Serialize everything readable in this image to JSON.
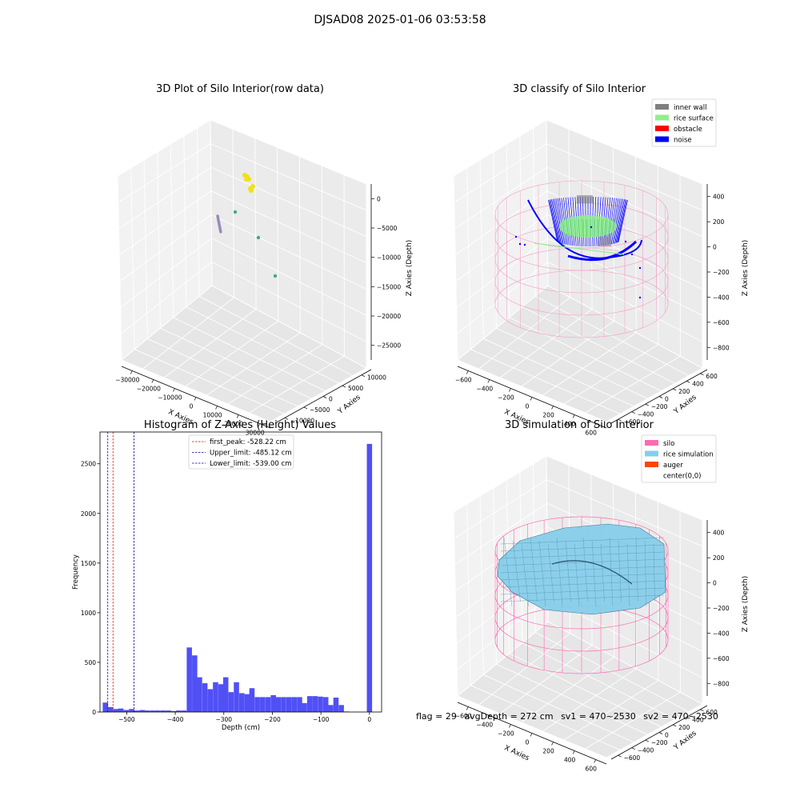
{
  "figure": {
    "title": "DJSAD08 2025-01-06 03:53:58"
  },
  "status": {
    "flag": "flag = 29",
    "avg_depth": "avgDepth = 272 cm",
    "sv1": "sv1 = 470~2530",
    "sv2": "sv2 = 470~2530"
  },
  "chart_data": [
    {
      "type": "scatter",
      "title": "3D Plot of Silo Interior(row data)",
      "xlabel": "X Axies",
      "ylabel": "Y Axies",
      "zlabel": "Z Axies (Depth)",
      "x_ticks": [
        "−30000",
        "−20000",
        "−10000",
        "0",
        "10000",
        "20000",
        "30000"
      ],
      "y_ticks": [
        "−10000",
        "−5000",
        "0",
        "5000",
        "10000"
      ],
      "z_ticks": [
        "0",
        "−5000",
        "−10000",
        "−15000",
        "−20000",
        "−25000"
      ],
      "grid": true,
      "series": [
        {
          "color": "#f2e01a"
        },
        {
          "color": "#9b8ab8"
        },
        {
          "color": "#3fae7c"
        }
      ]
    },
    {
      "type": "scatter",
      "title": "3D classify of Silo Interior",
      "xlabel": "X Axies",
      "ylabel": "Y Axies",
      "zlabel": "Z Axies (Depth)",
      "x_ticks": [
        "−600",
        "−400",
        "−200",
        "0",
        "200",
        "400",
        "600"
      ],
      "y_ticks": [
        "−600",
        "−400",
        "−200",
        "0",
        "200",
        "400",
        "600"
      ],
      "z_ticks": [
        "400",
        "200",
        "0",
        "−200",
        "−400",
        "−600",
        "−800"
      ],
      "grid": true,
      "legend_position": "top-right",
      "series": [
        {
          "name": "inner wall",
          "color": "#808080"
        },
        {
          "name": "rice surface",
          "color": "#90ee90"
        },
        {
          "name": "obstacle",
          "color": "#ff0000"
        },
        {
          "name": "noise",
          "color": "#0000ff"
        }
      ]
    },
    {
      "type": "bar",
      "title": "Histogram of Z-Axies (Height) Values",
      "xlabel": "Depth (cm)",
      "ylabel": "Frequency",
      "xlim": [
        -555,
        25
      ],
      "ylim": [
        0,
        2820
      ],
      "x_ticks": [
        -500,
        -400,
        -300,
        -200,
        -100,
        0
      ],
      "x_tick_labels": [
        "−500",
        "−400",
        "−300",
        "−200",
        "−100",
        "0"
      ],
      "y_ticks": [
        0,
        500,
        1000,
        1500,
        2000,
        2500
      ],
      "y_tick_labels": [
        "0",
        "500",
        "1000",
        "1500",
        "2000",
        "2500"
      ],
      "bin_width": 10.8,
      "color": "#5050f5",
      "bins": [
        {
          "x": -544,
          "v": 95
        },
        {
          "x": -533,
          "v": 50
        },
        {
          "x": -522,
          "v": 30
        },
        {
          "x": -512,
          "v": 35
        },
        {
          "x": -501,
          "v": 20
        },
        {
          "x": -490,
          "v": 30
        },
        {
          "x": -479,
          "v": 15
        },
        {
          "x": -468,
          "v": 20
        },
        {
          "x": -458,
          "v": 15
        },
        {
          "x": -447,
          "v": 15
        },
        {
          "x": -436,
          "v": 15
        },
        {
          "x": -425,
          "v": 15
        },
        {
          "x": -414,
          "v": 15
        },
        {
          "x": -404,
          "v": 10
        },
        {
          "x": -393,
          "v": 15
        },
        {
          "x": -382,
          "v": 15
        },
        {
          "x": -371,
          "v": 650
        },
        {
          "x": -360,
          "v": 570
        },
        {
          "x": -350,
          "v": 350
        },
        {
          "x": -339,
          "v": 290
        },
        {
          "x": -328,
          "v": 230
        },
        {
          "x": -317,
          "v": 300
        },
        {
          "x": -306,
          "v": 280
        },
        {
          "x": -296,
          "v": 350
        },
        {
          "x": -285,
          "v": 200
        },
        {
          "x": -274,
          "v": 300
        },
        {
          "x": -263,
          "v": 190
        },
        {
          "x": -252,
          "v": 180
        },
        {
          "x": -242,
          "v": 240
        },
        {
          "x": -231,
          "v": 150
        },
        {
          "x": -220,
          "v": 150
        },
        {
          "x": -209,
          "v": 150
        },
        {
          "x": -198,
          "v": 170
        },
        {
          "x": -188,
          "v": 150
        },
        {
          "x": -177,
          "v": 150
        },
        {
          "x": -166,
          "v": 150
        },
        {
          "x": -155,
          "v": 150
        },
        {
          "x": -144,
          "v": 150
        },
        {
          "x": -134,
          "v": 90
        },
        {
          "x": -123,
          "v": 160
        },
        {
          "x": -112,
          "v": 160
        },
        {
          "x": -101,
          "v": 155
        },
        {
          "x": -90,
          "v": 150
        },
        {
          "x": -80,
          "v": 70
        },
        {
          "x": -69,
          "v": 145
        },
        {
          "x": -58,
          "v": 70
        },
        {
          "x": -47,
          "v": 5
        },
        {
          "x": 0,
          "v": 2700
        }
      ],
      "vlines": [
        {
          "name": "first_peak: -528.22 cm",
          "x": -528.22,
          "color": "#ff0000"
        },
        {
          "name": "Upper_limit: -485.12 cm",
          "x": -485.12,
          "color": "#00008b"
        },
        {
          "name": "Lower_limit: -539.00 cm",
          "x": -539.0,
          "color": "#0000cd"
        }
      ],
      "legend_position": "top-center"
    },
    {
      "type": "surface",
      "title": "3D simulation of Silo Interior",
      "xlabel": "X Axies",
      "ylabel": "Y Axies",
      "zlabel": "Z Axies (Depth)",
      "x_ticks": [
        "−600",
        "−400",
        "−200",
        "0",
        "200",
        "400",
        "600"
      ],
      "y_ticks": [
        "−600",
        "−400",
        "−200",
        "0",
        "200",
        "400",
        "600"
      ],
      "z_ticks": [
        "400",
        "200",
        "0",
        "−200",
        "−400",
        "−600",
        "−800"
      ],
      "grid": true,
      "legend_position": "top-right",
      "series": [
        {
          "name": "silo",
          "color": "#ff69b4"
        },
        {
          "name": "rice simulation",
          "color": "#87ceeb"
        },
        {
          "name": "auger",
          "color": "#ff4500"
        },
        {
          "name": "center(0,0)",
          "color": "#ffffff"
        }
      ]
    }
  ]
}
